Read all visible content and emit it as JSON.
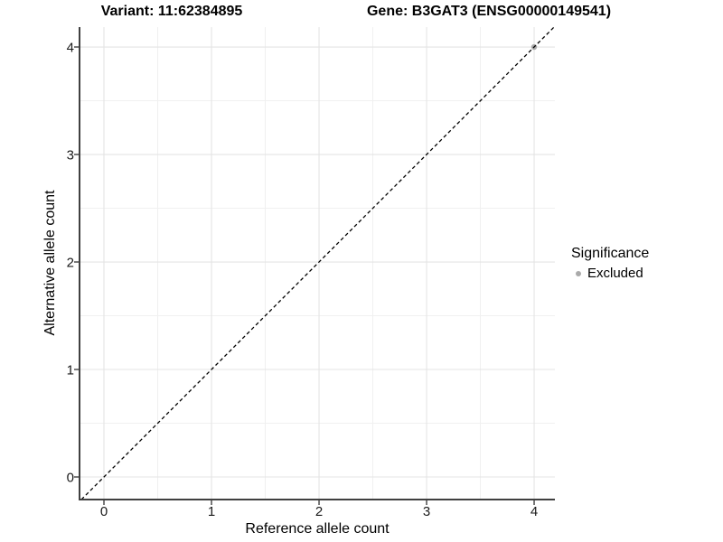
{
  "titles": {
    "variant": "Variant: 11:62384895",
    "gene": "Gene: B3GAT3 (ENSG00000149541)"
  },
  "legend": {
    "title": "Significance",
    "items": [
      {
        "label": "Excluded",
        "color": "#aaaaaa"
      }
    ]
  },
  "chart_data": {
    "type": "scatter",
    "title": "",
    "xlabel": "Reference allele count",
    "ylabel": "Alternative allele count",
    "xlim": [
      -0.227,
      4.193
    ],
    "ylim": [
      -0.21,
      4.185
    ],
    "x_ticks": [
      0,
      1,
      2,
      3,
      4
    ],
    "y_ticks": [
      0,
      1,
      2,
      3,
      4
    ],
    "grid": "major+minor",
    "legend_position": "right",
    "series": [
      {
        "name": "Excluded",
        "color": "#aaaaaa",
        "points": [
          {
            "x": 4,
            "y": 4
          }
        ]
      }
    ],
    "reference_line": {
      "kind": "identity",
      "slope": 1,
      "intercept": 0,
      "style": "dashed",
      "color": "#000000"
    }
  },
  "style": {
    "grid_major": "#e4e4e4",
    "grid_minor": "#f0f0f0",
    "axis_color": "#404040",
    "tick_label_color": "#1a1a1a",
    "point_radius": 3.2,
    "tick_length": 5
  }
}
